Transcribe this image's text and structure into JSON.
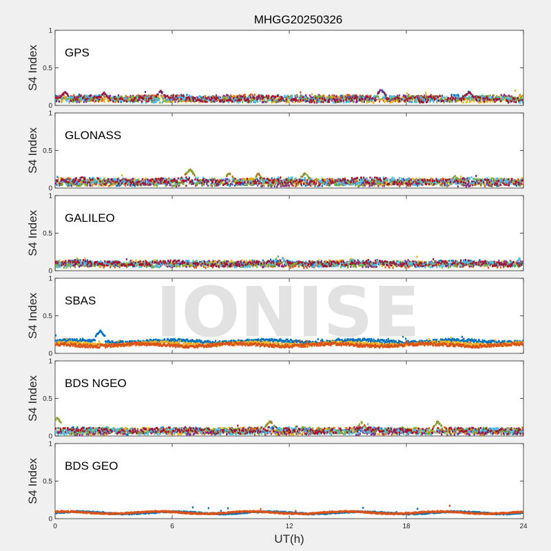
{
  "chart_data": {
    "type": "scatter",
    "title": "MHGG20250326",
    "xlabel": "UT(h)",
    "ylabel": "S4 Index",
    "xlim": [
      0,
      24
    ],
    "xticks": [
      "0",
      "6",
      "12",
      "18",
      "24"
    ],
    "ylim": [
      0,
      1
    ],
    "yticks": [
      "0",
      "0.5",
      "1"
    ],
    "watermark": "IONISE",
    "grid": false,
    "series_colors": [
      "#0072bd",
      "#d95319",
      "#edb120",
      "#7e2f8e",
      "#77ac30",
      "#4dbeee",
      "#a2142f"
    ],
    "panels": [
      {
        "label": "GPS",
        "baseline": 0.09,
        "spread": 0.035,
        "spikes": [
          {
            "x": 0.5,
            "y": 0.18
          },
          {
            "x": 2.5,
            "y": 0.17
          },
          {
            "x": 5.4,
            "y": 0.19
          },
          {
            "x": 16.7,
            "y": 0.21
          },
          {
            "x": 21.2,
            "y": 0.18
          }
        ]
      },
      {
        "label": "GLONASS",
        "baseline": 0.08,
        "spread": 0.04,
        "spikes": [
          {
            "x": 6.9,
            "y": 0.25
          },
          {
            "x": 8.9,
            "y": 0.2
          },
          {
            "x": 10.4,
            "y": 0.19
          },
          {
            "x": 12.8,
            "y": 0.2
          },
          {
            "x": 20.5,
            "y": 0.16
          }
        ]
      },
      {
        "label": "GALILEO",
        "baseline": 0.09,
        "spread": 0.03,
        "spikes": [
          {
            "x": 1.1,
            "y": 0.16
          },
          {
            "x": 11.5,
            "y": 0.21
          },
          {
            "x": 15.2,
            "y": 0.16
          },
          {
            "x": 23.8,
            "y": 0.16
          }
        ]
      },
      {
        "label": "SBAS",
        "baseline": 0.13,
        "spread": 0.02,
        "spikes": [
          {
            "x": 2.3,
            "y": 0.3
          },
          {
            "x": 14.5,
            "y": 0.2
          }
        ]
      },
      {
        "label": "BDS NGEO",
        "baseline": 0.07,
        "spread": 0.035,
        "spikes": [
          {
            "x": 0.1,
            "y": 0.24
          },
          {
            "x": 11.0,
            "y": 0.2
          },
          {
            "x": 15.7,
            "y": 0.18
          },
          {
            "x": 19.6,
            "y": 0.19
          }
        ]
      },
      {
        "label": "BDS GEO",
        "baseline": 0.08,
        "spread": 0.008,
        "spikes": [
          {
            "x": 13.1,
            "y": 0.11
          }
        ]
      }
    ]
  }
}
